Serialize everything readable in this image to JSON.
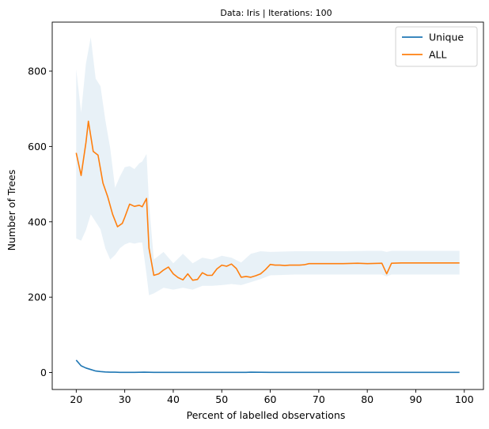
{
  "chart_data": {
    "type": "line",
    "title": "Data: Iris | Iterations: 100",
    "xlabel": "Percent of labelled observations",
    "ylabel": "Number of Trees",
    "xlim": [
      15.05,
      103.95
    ],
    "ylim": [
      -45,
      930
    ],
    "xticks": [
      20,
      30,
      40,
      50,
      60,
      70,
      80,
      90,
      100
    ],
    "yticks": [
      0,
      200,
      400,
      600,
      800
    ],
    "legend_position": "top-right",
    "grid": false,
    "series": [
      {
        "name": "Unique",
        "color": "#1f77b4",
        "x": [
          20,
          21,
          22,
          23,
          24,
          25,
          26,
          27,
          28,
          29,
          30,
          32,
          34,
          36,
          40,
          45,
          50,
          55,
          56,
          60,
          65,
          70,
          75,
          80,
          85,
          90,
          95,
          99
        ],
        "y": [
          33,
          18,
          12,
          8,
          4,
          2.5,
          1.5,
          1,
          1,
          0.5,
          0.5,
          0.5,
          1,
          0.5,
          0.5,
          0.5,
          0.5,
          0.5,
          1,
          0.5,
          0.5,
          0.5,
          0.5,
          0.5,
          0.5,
          0.5,
          0.5,
          0.5
        ]
      },
      {
        "name": "ALL",
        "color": "#ff7f0e",
        "x": [
          20,
          21,
          22,
          22.5,
          23.5,
          24.5,
          25.5,
          26.5,
          27.5,
          28.5,
          29.5,
          30,
          31,
          32,
          33,
          33.6,
          34.5,
          35,
          36,
          37,
          38,
          39,
          40,
          41,
          42,
          43,
          44,
          45,
          46,
          47,
          48,
          49,
          50,
          51,
          52,
          53,
          54,
          55,
          56,
          57,
          58,
          59,
          60,
          61,
          62,
          63,
          64,
          65,
          66,
          67,
          68,
          70,
          72,
          75,
          78,
          80,
          83,
          84,
          85,
          87,
          90,
          95,
          99
        ],
        "y": [
          583,
          523,
          610,
          667,
          587,
          577,
          503,
          466,
          420,
          387,
          396,
          412,
          447,
          441,
          444,
          440,
          462,
          330,
          258,
          262,
          272,
          280,
          262,
          252,
          246,
          262,
          245,
          247,
          265,
          258,
          258,
          275,
          285,
          282,
          288,
          276,
          253,
          255,
          253,
          257,
          262,
          273,
          287,
          285,
          285,
          284,
          285,
          285,
          285,
          286,
          289,
          289,
          289,
          289,
          290,
          289,
          290,
          262,
          290,
          291,
          291,
          291,
          291
        ]
      }
    ],
    "bands": [
      {
        "name": "ALL",
        "color": "#1f77b4",
        "opacity": 0.1,
        "x": [
          20,
          21,
          22,
          23,
          24,
          25,
          26,
          27,
          28,
          29,
          30,
          31,
          32,
          33,
          33.6,
          34.5,
          35,
          36,
          38,
          40,
          42,
          44,
          46,
          48,
          50,
          52,
          54,
          56,
          58,
          60,
          65,
          70,
          75,
          80,
          83,
          84,
          85,
          90,
          95,
          99
        ],
        "lower": [
          356,
          350,
          378,
          420,
          400,
          380,
          330,
          300,
          312,
          330,
          340,
          345,
          342,
          345,
          345,
          260,
          205,
          210,
          225,
          220,
          225,
          220,
          230,
          230,
          232,
          235,
          232,
          240,
          248,
          258,
          260,
          260,
          260,
          260,
          260,
          255,
          260,
          260,
          260,
          260
        ],
        "upper": [
          805,
          690,
          820,
          890,
          780,
          760,
          670,
          595,
          490,
          520,
          545,
          548,
          540,
          555,
          560,
          580,
          450,
          300,
          320,
          290,
          315,
          290,
          305,
          300,
          310,
          305,
          292,
          315,
          322,
          320,
          322,
          322,
          322,
          323,
          323,
          320,
          323,
          323,
          323,
          323
        ]
      }
    ]
  }
}
